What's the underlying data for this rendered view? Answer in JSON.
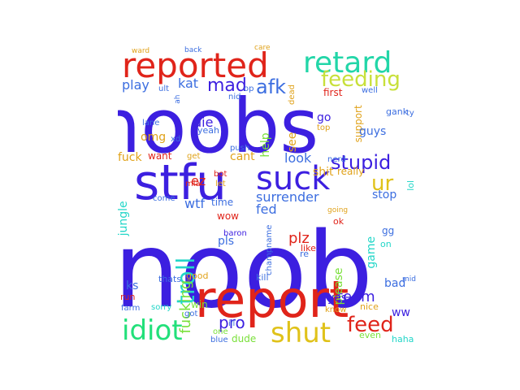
{
  "words": [
    {
      "text": "noob",
      "color": "#3c1fe0"
    },
    {
      "text": "noobs",
      "color": "#3c1fe0"
    },
    {
      "text": "report",
      "color": "#e0241a"
    },
    {
      "text": "stfu",
      "color": "#3c1fe0"
    },
    {
      "text": "reported",
      "color": "#e0241a"
    },
    {
      "text": "retard",
      "color": "#22d6a8"
    },
    {
      "text": "suck",
      "color": "#3c1fe0"
    },
    {
      "text": "idiot",
      "color": "#22e07a"
    },
    {
      "text": "shut",
      "color": "#e0c21a"
    },
    {
      "text": "troll",
      "color": "#22d6c8"
    },
    {
      "text": "feeding",
      "color": "#c8e03a"
    },
    {
      "text": "feed",
      "color": "#e0241a"
    },
    {
      "text": "stupid",
      "color": "#3c1fe0"
    },
    {
      "text": "afk",
      "color": "#3c6ee0"
    },
    {
      "text": "mad",
      "color": "#3c1fe0"
    },
    {
      "text": "ur",
      "color": "#e0c21a"
    },
    {
      "text": "pro",
      "color": "#3c1fe0"
    },
    {
      "text": "fucking",
      "color": "#7ae03a"
    },
    {
      "text": "surrender",
      "color": "#3c6ee0"
    },
    {
      "text": "team",
      "color": "#3c1fe0"
    },
    {
      "text": "play",
      "color": "#3c6ee0"
    },
    {
      "text": "kat",
      "color": "#3c6ee0"
    },
    {
      "text": "die",
      "color": "#3c1fe0"
    },
    {
      "text": "omg",
      "color": "#e0a21a"
    },
    {
      "text": "look",
      "color": "#3c6ee0"
    },
    {
      "text": "help",
      "color": "#7ae03a"
    },
    {
      "text": "cant",
      "color": "#e0a21a"
    },
    {
      "text": "shit",
      "color": "#e0a21a"
    },
    {
      "text": "ez",
      "color": "#e0241a"
    },
    {
      "text": "wtf",
      "color": "#3c6ee0"
    },
    {
      "text": "fed",
      "color": "#3c6ee0"
    },
    {
      "text": "plz",
      "color": "#e0241a"
    },
    {
      "text": "pls",
      "color": "#3c6ee0"
    },
    {
      "text": "please",
      "color": "#7ae03a"
    },
    {
      "text": "game",
      "color": "#22d6c8"
    },
    {
      "text": "stop",
      "color": "#3c6ee0"
    },
    {
      "text": "jungle",
      "color": "#22d6c8"
    },
    {
      "text": "fuck",
      "color": "#e0a21a"
    },
    {
      "text": "yes",
      "color": "#3c1fe0"
    },
    {
      "text": "ks",
      "color": "#3c6ee0"
    },
    {
      "text": "bad",
      "color": "#3c6ee0"
    },
    {
      "text": "ww",
      "color": "#3c1fe0"
    },
    {
      "text": "dude",
      "color": "#7ae03a"
    },
    {
      "text": "even",
      "color": "#7ae03a"
    },
    {
      "text": "haha",
      "color": "#22d6c8"
    },
    {
      "text": "support",
      "color": "#e0a21a"
    },
    {
      "text": "guys",
      "color": "#3c6ee0"
    },
    {
      "text": "first",
      "color": "#e0241a"
    },
    {
      "text": "go",
      "color": "#3c1fe0"
    },
    {
      "text": "top",
      "color": "#e0a21a"
    },
    {
      "text": "see",
      "color": "#e0a21a"
    },
    {
      "text": "gank",
      "color": "#3c6ee0"
    },
    {
      "text": "want",
      "color": "#e0241a"
    },
    {
      "text": "get",
      "color": "#e0a21a"
    },
    {
      "text": "xd",
      "color": "#3c6ee0"
    },
    {
      "text": "yeah",
      "color": "#3c6ee0"
    },
    {
      "text": "lane",
      "color": "#3c6ee0"
    },
    {
      "text": "push",
      "color": "#3c6ee0"
    },
    {
      "text": "bot",
      "color": "#e0241a"
    },
    {
      "text": "let",
      "color": "#e0a21a"
    },
    {
      "text": "nerd",
      "color": "#3c6ee0"
    },
    {
      "text": "really",
      "color": "#e0a21a"
    },
    {
      "text": "lol",
      "color": "#22d6c8"
    },
    {
      "text": "time",
      "color": "#3c6ee0"
    },
    {
      "text": "come",
      "color": "#3c6ee0"
    },
    {
      "text": "mia",
      "color": "#e0241a"
    },
    {
      "text": "going",
      "color": "#e0a21a"
    },
    {
      "text": "ok",
      "color": "#e0241a"
    },
    {
      "text": "wow",
      "color": "#e0241a"
    },
    {
      "text": "baron",
      "color": "#3c1fe0"
    },
    {
      "text": "like",
      "color": "#e0241a"
    },
    {
      "text": "champname",
      "color": "#3c6ee0"
    },
    {
      "text": "re",
      "color": "#3c6ee0"
    },
    {
      "text": "on",
      "color": "#22d6c8"
    },
    {
      "text": "gg",
      "color": "#3c6ee0"
    },
    {
      "text": "kill",
      "color": "#3c6ee0"
    },
    {
      "text": "good",
      "color": "#e0a21a"
    },
    {
      "text": "thats",
      "color": "#3c6ee0"
    },
    {
      "text": "win",
      "color": "#7ae03a"
    },
    {
      "text": "run",
      "color": "#e0241a"
    },
    {
      "text": "farm",
      "color": "#3c6ee0"
    },
    {
      "text": "sorry",
      "color": "#22d6c8"
    },
    {
      "text": "got",
      "color": "#3c6ee0"
    },
    {
      "text": "one",
      "color": "#7ae03a"
    },
    {
      "text": "ill",
      "color": "#3c6ee0"
    },
    {
      "text": "blue",
      "color": "#3c6ee0"
    },
    {
      "text": "nice",
      "color": "#e0a21a"
    },
    {
      "text": "know",
      "color": "#e0a21a"
    },
    {
      "text": "ward",
      "color": "#e0a21a"
    },
    {
      "text": "back",
      "color": "#3c6ee0"
    },
    {
      "text": "care",
      "color": "#e0a21a"
    },
    {
      "text": "well",
      "color": "#3c6ee0"
    },
    {
      "text": "ult",
      "color": "#3c6ee0"
    },
    {
      "text": "nid",
      "color": "#3c6ee0"
    },
    {
      "text": "op",
      "color": "#3c6ee0"
    },
    {
      "text": "dead",
      "color": "#e0a21a"
    },
    {
      "text": "ty",
      "color": "#3c6ee0"
    },
    {
      "text": "ah",
      "color": "#3c6ee0"
    },
    {
      "text": "mid",
      "color": "#3c6ee0"
    }
  ]
}
